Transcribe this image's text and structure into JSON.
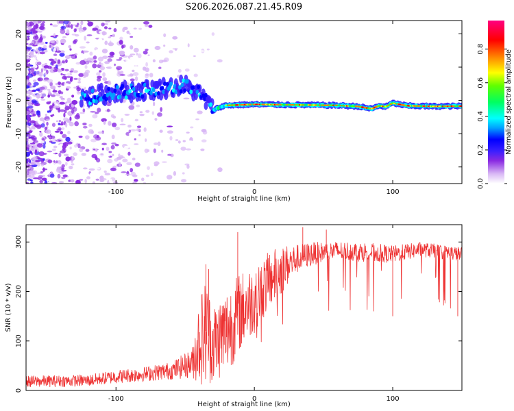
{
  "figure_title": "S206.2026.087.21.45.R09",
  "chart_data": [
    {
      "type": "heatmap",
      "title": "S206.2026.087.21.45.R09",
      "xlabel": "Height of straight line (km)",
      "ylabel": "Frequency (Hz)",
      "xlim": [
        -165,
        150
      ],
      "ylim": [
        -25,
        24
      ],
      "xticks": [
        -100,
        0,
        100
      ],
      "yticks": [
        -20,
        -10,
        0,
        10,
        20
      ],
      "colorbar": {
        "label": "Normalized spectral amplitude",
        "range": [
          0,
          0.97
        ],
        "ticks": [
          0.0,
          0.2,
          0.4,
          0.6,
          0.8
        ],
        "colormap": [
          "#ffffff",
          "#d9b8f5",
          "#8a2be2",
          "#3a1fff",
          "#0000ff",
          "#00a0ff",
          "#00ffff",
          "#00ff60",
          "#60ff00",
          "#ffff00",
          "#ff8000",
          "#ff0000",
          "#ff0080"
        ]
      },
      "ridge": {
        "description": "dominant frequency ridge",
        "x": [
          -120,
          -100,
          -80,
          -60,
          -50,
          -40,
          -35,
          -30,
          -25,
          -20,
          0,
          20,
          40,
          60,
          75,
          80,
          85,
          90,
          95,
          100,
          110,
          130,
          150
        ],
        "frequency": [
          1,
          2.5,
          3,
          4,
          4.5,
          2,
          0,
          -3,
          -2,
          -1.5,
          -1.2,
          -1.3,
          -1.4,
          -1.5,
          -1.8,
          -2.2,
          -2.5,
          -1.6,
          -1.9,
          -0.8,
          -1.6,
          -1.8,
          -1.7
        ]
      }
    },
    {
      "type": "line",
      "xlabel": "Height of straight line (km)",
      "ylabel": "SNR (10 * v/v)",
      "xlim": [
        -165,
        150
      ],
      "ylim": [
        0,
        335
      ],
      "xticks": [
        -100,
        0,
        100
      ],
      "yticks": [
        0,
        100,
        200,
        300
      ],
      "series": [
        {
          "name": "SNR",
          "color": "#ee3333",
          "envelope_x": [
            -165,
            -120,
            -100,
            -80,
            -60,
            -45,
            -40,
            -35,
            -30,
            -20,
            -10,
            0,
            10,
            20,
            30,
            40,
            50,
            60,
            80,
            100,
            120,
            150
          ],
          "mean": [
            18,
            20,
            28,
            33,
            40,
            55,
            100,
            120,
            95,
            120,
            160,
            185,
            220,
            245,
            265,
            275,
            280,
            282,
            280,
            275,
            285,
            275
          ],
          "spread": [
            12,
            12,
            14,
            15,
            18,
            30,
            90,
            110,
            80,
            90,
            80,
            70,
            60,
            50,
            30,
            25,
            20,
            20,
            20,
            18,
            15,
            15
          ],
          "peaks": [
            {
              "x": -35,
              "y": 255
            },
            {
              "x": -33,
              "y": 245
            },
            {
              "x": -12,
              "y": 320
            },
            {
              "x": 35,
              "y": 330
            },
            {
              "x": 52,
              "y": 325
            },
            {
              "x": 100,
              "y": 150
            },
            {
              "x": 147,
              "y": 150
            }
          ]
        }
      ]
    }
  ]
}
